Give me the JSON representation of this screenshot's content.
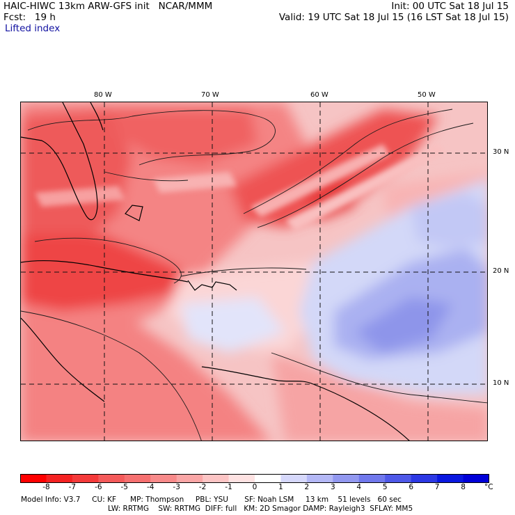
{
  "header": {
    "model_title": "HAIC-HIWC 13km ARW-GFS init   NCAR/MMM",
    "init": "Init: 00 UTC Sat 18 Jul 15",
    "forecast": "Fcst:   19 h",
    "valid": "Valid: 19 UTC Sat 18 Jul 15 (16 LST Sat 18 Jul 15)",
    "field": "Lifted index"
  },
  "map": {
    "lon_labels": [
      "80 W",
      "70 W",
      "60 W",
      "50 W"
    ],
    "lat_labels": [
      "30 N",
      "20 N",
      "10 N"
    ],
    "gridline_style": "dashed",
    "colors": {
      "strong_red": "#ee3a3a",
      "mid_red": "#f26b6b",
      "light_red": "#f7a3a3",
      "pale_red": "#fbd3d3",
      "pale_blue": "#d7dcf8",
      "light_blue": "#b6bcf3",
      "mid_blue": "#9aa0ee",
      "outline": "#000000"
    }
  },
  "colorbar": {
    "levels": [
      "-8",
      "-7",
      "-6",
      "-5",
      "-4",
      "-3",
      "-2",
      "-1",
      "0",
      "1",
      "2",
      "3",
      "4",
      "5",
      "6",
      "7",
      "8"
    ],
    "unit": "°C",
    "colors": [
      "#ff0000",
      "#f42222",
      "#f43a3a",
      "#f45a5a",
      "#f67070",
      "#f88a8a",
      "#faa6a6",
      "#fcc4c4",
      "#fee2e2",
      "#ffffff",
      "#d6d8fb",
      "#b4b8f6",
      "#9298f0",
      "#7078ec",
      "#4e58e8",
      "#2c38e4",
      "#0a18e0",
      "#0000d8"
    ]
  },
  "model_info": {
    "line1": "Model Info: V3.7     CU: KF      MP: Thompson     PBL: YSU       SF: Noah LSM     13 km    51 levels   60 sec",
    "line2": "LW: RRTMG    SW: RRTMG  DIFF: full   KM: 2D Smagor DAMP: Rayleigh3  SFLAY: MM5"
  }
}
